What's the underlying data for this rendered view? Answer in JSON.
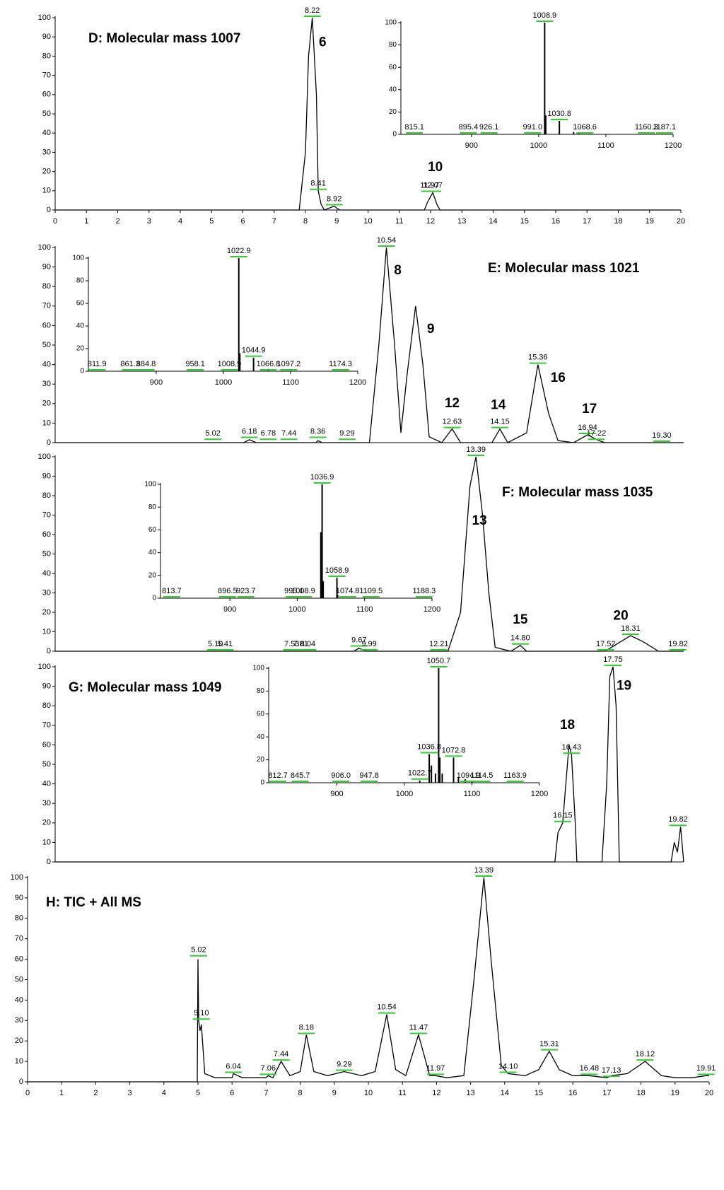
{
  "chart_data": [
    {
      "type": "line",
      "title": "D: Molecular mass 1007",
      "xlim": [
        0,
        20
      ],
      "xticks": [
        0,
        1,
        2,
        3,
        4,
        5,
        6,
        7,
        8,
        9,
        10,
        11,
        12,
        13,
        14,
        15,
        16,
        17,
        18,
        19,
        20
      ],
      "ylim": [
        0,
        100
      ],
      "yticks": [
        0,
        10,
        20,
        30,
        40,
        50,
        60,
        70,
        80,
        90,
        100
      ],
      "x": [
        0,
        7.8,
        8.0,
        8.1,
        8.22,
        8.35,
        8.41,
        8.5,
        8.6,
        8.92,
        9.0,
        9.1,
        11.8,
        11.9,
        12.07,
        12.2,
        12.3,
        20
      ],
      "series": [
        {
          "color": "#000000",
          "values": [
            0,
            0,
            30,
            80,
            100,
            60,
            10,
            3,
            0,
            2,
            1,
            0,
            0,
            4,
            9,
            3,
            0,
            0
          ]
        }
      ],
      "peak_labels": [
        {
          "x": 8.22,
          "y": 100,
          "label": "8.22"
        },
        {
          "x": 8.41,
          "y": 10,
          "label": "8.41"
        },
        {
          "x": 8.92,
          "y": 2,
          "label": "8.92"
        },
        {
          "x": 11.97,
          "y": 9,
          "label": "11.97"
        },
        {
          "x": 12.07,
          "y": 9,
          "label": "12.07"
        }
      ],
      "compound_labels": [
        {
          "x": 8.55,
          "y": 87,
          "label": "6"
        },
        {
          "x": 12.15,
          "y": 22,
          "label": "10"
        }
      ],
      "inset": {
        "type": "bar",
        "xlim": [
          795,
          1200
        ],
        "xticks": [
          900,
          1000,
          1100,
          1200
        ],
        "ylim": [
          0,
          100
        ],
        "yticks": [
          0,
          20,
          40,
          60,
          80,
          100
        ],
        "x": [
          1008.9,
          1010.5,
          1030.8,
          1052,
          1060
        ],
        "values": [
          100,
          17,
          12,
          2,
          1
        ],
        "peak_labels": [
          {
            "x": 815.1,
            "y": 0,
            "label": "815.1"
          },
          {
            "x": 895.4,
            "y": 0,
            "label": "895.4"
          },
          {
            "x": 926.1,
            "y": 0,
            "label": "926.1"
          },
          {
            "x": 991.0,
            "y": 0,
            "label": "991.0"
          },
          {
            "x": 1008.9,
            "y": 100,
            "label": "1008.9"
          },
          {
            "x": 1030.8,
            "y": 12,
            "label": "1030.8"
          },
          {
            "x": 1068.6,
            "y": 0,
            "label": "1068.6"
          },
          {
            "x": 1160.3,
            "y": 0,
            "label": "1160.3"
          },
          {
            "x": 1187.1,
            "y": 0,
            "label": "1187.1"
          }
        ]
      }
    },
    {
      "type": "line",
      "title": "E: Molecular mass 1021",
      "xlim": [
        0,
        20
      ],
      "ylim": [
        0,
        100
      ],
      "yticks": [
        0,
        10,
        20,
        30,
        40,
        50,
        60,
        70,
        80,
        90,
        100
      ],
      "x": [
        0,
        5.0,
        6.0,
        6.18,
        6.4,
        8.3,
        8.36,
        8.5,
        10.0,
        10.3,
        10.54,
        10.8,
        11.0,
        11.2,
        11.47,
        11.7,
        11.9,
        12.3,
        12.63,
        12.9,
        13.9,
        14.15,
        14.4,
        15.0,
        15.36,
        15.7,
        16.0,
        16.5,
        16.94,
        17.3,
        17.5,
        20
      ],
      "series": [
        {
          "color": "#000000",
          "values": [
            0,
            0,
            0,
            1.5,
            0,
            0,
            1,
            0,
            0,
            50,
            100,
            50,
            5,
            35,
            70,
            40,
            3,
            0,
            7,
            0,
            0,
            7,
            0,
            5,
            40,
            15,
            1,
            0,
            4,
            1,
            0,
            0
          ]
        }
      ],
      "peak_labels": [
        {
          "x": 5.02,
          "y": 1,
          "label": "5.02"
        },
        {
          "x": 6.18,
          "y": 2,
          "label": "6.18"
        },
        {
          "x": 6.78,
          "y": 1,
          "label": "6.78"
        },
        {
          "x": 7.44,
          "y": 1,
          "label": "7.44"
        },
        {
          "x": 8.36,
          "y": 2,
          "label": "8.36"
        },
        {
          "x": 9.29,
          "y": 1,
          "label": "9.29"
        },
        {
          "x": 10.54,
          "y": 100,
          "label": "10.54"
        },
        {
          "x": 12.63,
          "y": 7,
          "label": "12.63"
        },
        {
          "x": 14.15,
          "y": 7,
          "label": "14.15"
        },
        {
          "x": 15.36,
          "y": 40,
          "label": "15.36"
        },
        {
          "x": 16.94,
          "y": 4,
          "label": "16.94"
        },
        {
          "x": 17.22,
          "y": 1,
          "label": "17.22"
        },
        {
          "x": 19.3,
          "y": 0,
          "label": "19.30"
        }
      ],
      "compound_labels": [
        {
          "x": 10.9,
          "y": 88,
          "label": "8"
        },
        {
          "x": 11.95,
          "y": 58,
          "label": "9"
        },
        {
          "x": 12.63,
          "y": 20,
          "label": "12"
        },
        {
          "x": 14.1,
          "y": 19,
          "label": "14"
        },
        {
          "x": 16.0,
          "y": 33,
          "label": "16"
        },
        {
          "x": 17.0,
          "y": 17,
          "label": "17"
        }
      ],
      "inset": {
        "type": "bar",
        "xlim": [
          799,
          1200
        ],
        "xticks": [
          900,
          1000,
          1100,
          1200
        ],
        "ylim": [
          0,
          100
        ],
        "yticks": [
          0,
          20,
          40,
          60,
          80,
          100
        ],
        "x": [
          1022.9,
          1024.5,
          1044.9,
          1066.8
        ],
        "values": [
          100,
          16,
          12,
          2
        ],
        "peak_labels": [
          {
            "x": 811.9,
            "y": 0,
            "label": "811.9"
          },
          {
            "x": 861.3,
            "y": 0,
            "label": "861.3"
          },
          {
            "x": 884.8,
            "y": 0,
            "label": "884.8"
          },
          {
            "x": 958.1,
            "y": 0,
            "label": "958.1"
          },
          {
            "x": 1008.9,
            "y": 0,
            "label": "1008.9"
          },
          {
            "x": 1022.9,
            "y": 100,
            "label": "1022.9"
          },
          {
            "x": 1044.9,
            "y": 12,
            "label": "1044.9"
          },
          {
            "x": 1066.8,
            "y": 0,
            "label": "1066.8"
          },
          {
            "x": 1097.2,
            "y": 0,
            "label": "1097.2"
          },
          {
            "x": 1174.3,
            "y": 0,
            "label": "1174.3"
          }
        ]
      }
    },
    {
      "type": "line",
      "title": "F: Molecular mass 1035",
      "xlim": [
        0,
        20
      ],
      "ylim": [
        0,
        100
      ],
      "yticks": [
        0,
        10,
        20,
        30,
        40,
        50,
        60,
        70,
        80,
        90,
        100
      ],
      "x": [
        0,
        9.5,
        9.67,
        9.9,
        12.5,
        12.9,
        13.2,
        13.39,
        13.6,
        13.8,
        14.0,
        14.5,
        14.8,
        15.0,
        17.5,
        18.0,
        18.31,
        18.7,
        19.2,
        20
      ],
      "series": [
        {
          "color": "#000000",
          "values": [
            0,
            0,
            1.5,
            0,
            0,
            20,
            85,
            100,
            70,
            30,
            2,
            0,
            3,
            0,
            0,
            5,
            8,
            5,
            0,
            0
          ]
        }
      ],
      "peak_labels": [
        {
          "x": 5.1,
          "y": 0,
          "label": "5.10"
        },
        {
          "x": 5.41,
          "y": 0,
          "label": "5.41"
        },
        {
          "x": 7.53,
          "y": 0,
          "label": "7.53"
        },
        {
          "x": 7.81,
          "y": 0,
          "label": "7.81"
        },
        {
          "x": 8.04,
          "y": 0,
          "label": "8.04"
        },
        {
          "x": 9.67,
          "y": 2,
          "label": "9.67"
        },
        {
          "x": 9.99,
          "y": 0,
          "label": "9.99"
        },
        {
          "x": 12.21,
          "y": 0,
          "label": "12.21"
        },
        {
          "x": 13.39,
          "y": 100,
          "label": "13.39"
        },
        {
          "x": 14.8,
          "y": 3,
          "label": "14.80"
        },
        {
          "x": 17.52,
          "y": 0,
          "label": "17.52"
        },
        {
          "x": 18.31,
          "y": 8,
          "label": "18.31"
        },
        {
          "x": 19.82,
          "y": 0,
          "label": "19.82"
        }
      ],
      "compound_labels": [
        {
          "x": 13.5,
          "y": 67,
          "label": "13"
        },
        {
          "x": 14.8,
          "y": 16,
          "label": "15"
        },
        {
          "x": 18.0,
          "y": 18,
          "label": "20"
        }
      ],
      "inset": {
        "type": "bar",
        "xlim": [
          797,
          1200
        ],
        "xticks": [
          900,
          1000,
          1100,
          1200
        ],
        "ylim": [
          0,
          100
        ],
        "yticks": [
          0,
          20,
          40,
          60,
          80,
          100
        ],
        "x": [
          1035,
          1036.9,
          1038.5,
          1058.9,
          1060
        ],
        "values": [
          58,
          100,
          15,
          18,
          3
        ],
        "peak_labels": [
          {
            "x": 813.7,
            "y": 0,
            "label": "813.7"
          },
          {
            "x": 896.5,
            "y": 0,
            "label": "896.5"
          },
          {
            "x": 923.7,
            "y": 0,
            "label": "923.7"
          },
          {
            "x": 995.1,
            "y": 0,
            "label": "995.1"
          },
          {
            "x": 1008.9,
            "y": 0,
            "label": "1008.9"
          },
          {
            "x": 1036.9,
            "y": 100,
            "label": "1036.9"
          },
          {
            "x": 1058.9,
            "y": 18,
            "label": "1058.9"
          },
          {
            "x": 1074.8,
            "y": 0,
            "label": "1074.8"
          },
          {
            "x": 1109.5,
            "y": 0,
            "label": "1109.5"
          },
          {
            "x": 1188.3,
            "y": 0,
            "label": "1188.3"
          }
        ]
      }
    },
    {
      "type": "line",
      "title": "G: Molecular mass 1049",
      "xlim": [
        0,
        20
      ],
      "ylim": [
        0,
        100
      ],
      "yticks": [
        0,
        10,
        20,
        30,
        40,
        50,
        60,
        70,
        80,
        90,
        100
      ],
      "x": [
        0,
        15.9,
        16.0,
        16.15,
        16.25,
        16.35,
        16.43,
        16.55,
        16.6,
        17.4,
        17.55,
        17.65,
        17.75,
        17.85,
        17.95,
        19.6,
        19.7,
        19.8,
        19.9,
        20
      ],
      "series": [
        {
          "color": "#000000",
          "values": [
            0,
            0,
            15,
            20,
            40,
            60,
            55,
            20,
            0,
            0,
            40,
            95,
            100,
            80,
            0,
            0,
            10,
            5,
            18,
            0
          ]
        }
      ],
      "peak_labels": [
        {
          "x": 16.15,
          "y": 20,
          "label": "16.15"
        },
        {
          "x": 16.43,
          "y": 55,
          "label": "16.43"
        },
        {
          "x": 17.75,
          "y": 100,
          "label": "17.75"
        },
        {
          "x": 19.82,
          "y": 18,
          "label": "19.82"
        }
      ],
      "compound_labels": [
        {
          "x": 16.3,
          "y": 70,
          "label": "18"
        },
        {
          "x": 18.1,
          "y": 90,
          "label": "19"
        }
      ],
      "inset": {
        "type": "bar",
        "xlim": [
          799,
          1200
        ],
        "xticks": [
          900,
          1000,
          1100,
          1200
        ],
        "ylim": [
          0,
          100
        ],
        "yticks": [
          0,
          20,
          40,
          60,
          80,
          100
        ],
        "x": [
          1022.7,
          1036.8,
          1040,
          1046,
          1050.7,
          1052.5,
          1056,
          1072.8,
          1080,
          1090,
          1100
        ],
        "values": [
          2,
          25,
          15,
          8,
          100,
          22,
          8,
          22,
          5,
          3,
          2
        ],
        "peak_labels": [
          {
            "x": 812.7,
            "y": 0,
            "label": "812.7"
          },
          {
            "x": 845.7,
            "y": 0,
            "label": "845.7"
          },
          {
            "x": 906.0,
            "y": 0,
            "label": "906.0"
          },
          {
            "x": 947.8,
            "y": 0,
            "label": "947.8"
          },
          {
            "x": 1022.7,
            "y": 2,
            "label": "1022.7"
          },
          {
            "x": 1036.8,
            "y": 25,
            "label": "1036.8"
          },
          {
            "x": 1050.7,
            "y": 100,
            "label": "1050.7"
          },
          {
            "x": 1072.8,
            "y": 22,
            "label": "1072.8"
          },
          {
            "x": 1094.9,
            "y": 0,
            "label": "1094.9"
          },
          {
            "x": 1114.5,
            "y": 0,
            "label": "1114.5"
          },
          {
            "x": 1163.9,
            "y": 0,
            "label": "1163.9"
          }
        ]
      }
    },
    {
      "type": "line",
      "title": "H: TIC  + All MS",
      "xlim": [
        0,
        20
      ],
      "xticks": [
        0,
        1,
        2,
        3,
        4,
        5,
        6,
        7,
        8,
        9,
        10,
        11,
        12,
        13,
        14,
        15,
        16,
        17,
        18,
        19,
        20
      ],
      "ylim": [
        0,
        100
      ],
      "yticks": [
        0,
        10,
        20,
        30,
        40,
        50,
        60,
        70,
        80,
        90,
        100
      ],
      "x": [
        0,
        4.98,
        5.0,
        5.02,
        5.06,
        5.1,
        5.2,
        5.5,
        6.0,
        6.04,
        6.3,
        7.0,
        7.06,
        7.2,
        7.44,
        7.7,
        8.0,
        8.18,
        8.4,
        8.8,
        9.29,
        9.8,
        10.2,
        10.54,
        10.8,
        11.1,
        11.47,
        11.8,
        11.97,
        12.3,
        12.8,
        13.1,
        13.39,
        13.6,
        13.9,
        14.1,
        14.6,
        15.0,
        15.31,
        15.6,
        16.0,
        16.48,
        17.0,
        17.13,
        17.6,
        18.12,
        18.6,
        19.0,
        19.5,
        19.91,
        20
      ],
      "series": [
        {
          "color": "#000000",
          "values": [
            0,
            0,
            60,
            30,
            25,
            28,
            4,
            2,
            2,
            4,
            2,
            2,
            3,
            2,
            10,
            3,
            5,
            23,
            5,
            3,
            5,
            3,
            5,
            33,
            6,
            3,
            23,
            3,
            3,
            2,
            3,
            50,
            100,
            60,
            8,
            4,
            3,
            6,
            15,
            6,
            3,
            3,
            2,
            3,
            4,
            10,
            3,
            2,
            2,
            3,
            3
          ]
        }
      ],
      "peak_labels": [
        {
          "x": 5.02,
          "y": 61,
          "label": "5.02"
        },
        {
          "x": 5.1,
          "y": 30,
          "label": "5.10"
        },
        {
          "x": 6.04,
          "y": 4,
          "label": "6.04"
        },
        {
          "x": 7.06,
          "y": 3,
          "label": "7.06"
        },
        {
          "x": 7.44,
          "y": 10,
          "label": "7.44"
        },
        {
          "x": 8.18,
          "y": 23,
          "label": "8.18"
        },
        {
          "x": 9.29,
          "y": 5,
          "label": "9.29"
        },
        {
          "x": 10.54,
          "y": 33,
          "label": "10.54"
        },
        {
          "x": 11.47,
          "y": 23,
          "label": "11.47"
        },
        {
          "x": 11.97,
          "y": 3,
          "label": "11.97"
        },
        {
          "x": 13.39,
          "y": 100,
          "label": "13.39"
        },
        {
          "x": 14.1,
          "y": 4,
          "label": "14.10"
        },
        {
          "x": 15.31,
          "y": 15,
          "label": "15.31"
        },
        {
          "x": 16.48,
          "y": 3,
          "label": "16.48"
        },
        {
          "x": 17.13,
          "y": 2,
          "label": "17.13"
        },
        {
          "x": 18.12,
          "y": 10,
          "label": "18.12"
        },
        {
          "x": 19.91,
          "y": 3,
          "label": "19.91"
        }
      ],
      "compound_labels": []
    }
  ]
}
